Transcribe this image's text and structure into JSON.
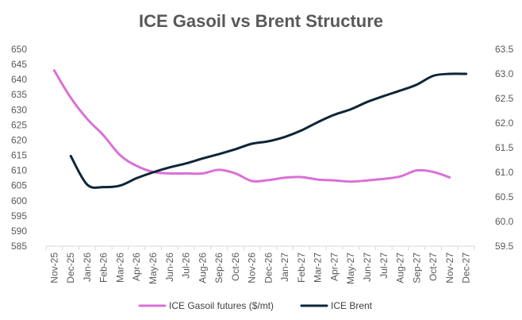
{
  "chart_data": {
    "type": "line",
    "title": "ICE Gasoil vs Brent Structure",
    "categories": [
      "Nov-25",
      "Dec-25",
      "Jan-26",
      "Feb-26",
      "Mar-26",
      "Apr-26",
      "May-26",
      "Jun-26",
      "Jul-26",
      "Aug-26",
      "Sep-26",
      "Oct-26",
      "Nov-26",
      "Dec-26",
      "Jan-27",
      "Feb-27",
      "Mar-27",
      "Apr-27",
      "May-27",
      "Jun-27",
      "Jul-27",
      "Aug-27",
      "Sep-27",
      "Oct-27",
      "Nov-27",
      "Dec-27"
    ],
    "left_axis": {
      "min": 585,
      "max": 650,
      "step": 5,
      "ticks": [
        "585",
        "590",
        "595",
        "600",
        "605",
        "610",
        "615",
        "620",
        "625",
        "630",
        "635",
        "640",
        "645",
        "650"
      ]
    },
    "right_axis": {
      "min": 59.5,
      "max": 63.5,
      "step": 0.5,
      "ticks": [
        "59.5",
        "60.0",
        "60.5",
        "61.0",
        "61.5",
        "62.0",
        "62.5",
        "63.0",
        "63.5"
      ]
    },
    "grid": false,
    "legend_position": "bottom",
    "series": [
      {
        "name": "ICE Gasoil futures ($/mt)",
        "axis": "left",
        "color": "#DA70D6",
        "values": [
          643,
          634,
          627,
          621.5,
          615,
          611.5,
          609.5,
          609,
          609,
          609,
          610.2,
          609,
          606.5,
          606.8,
          607.6,
          607.8,
          607,
          606.7,
          606.3,
          606.7,
          607.2,
          608,
          610,
          609.5,
          607.7,
          null
        ]
      },
      {
        "name": "ICE Brent",
        "axis": "right",
        "color": "#0D2538",
        "values": [
          null,
          61.33,
          60.75,
          60.7,
          60.73,
          60.88,
          61.0,
          61.1,
          61.18,
          61.28,
          61.37,
          61.47,
          61.58,
          61.63,
          61.72,
          61.85,
          62.02,
          62.17,
          62.28,
          62.43,
          62.55,
          62.66,
          62.78,
          62.96,
          63.0,
          63.0
        ]
      }
    ]
  }
}
